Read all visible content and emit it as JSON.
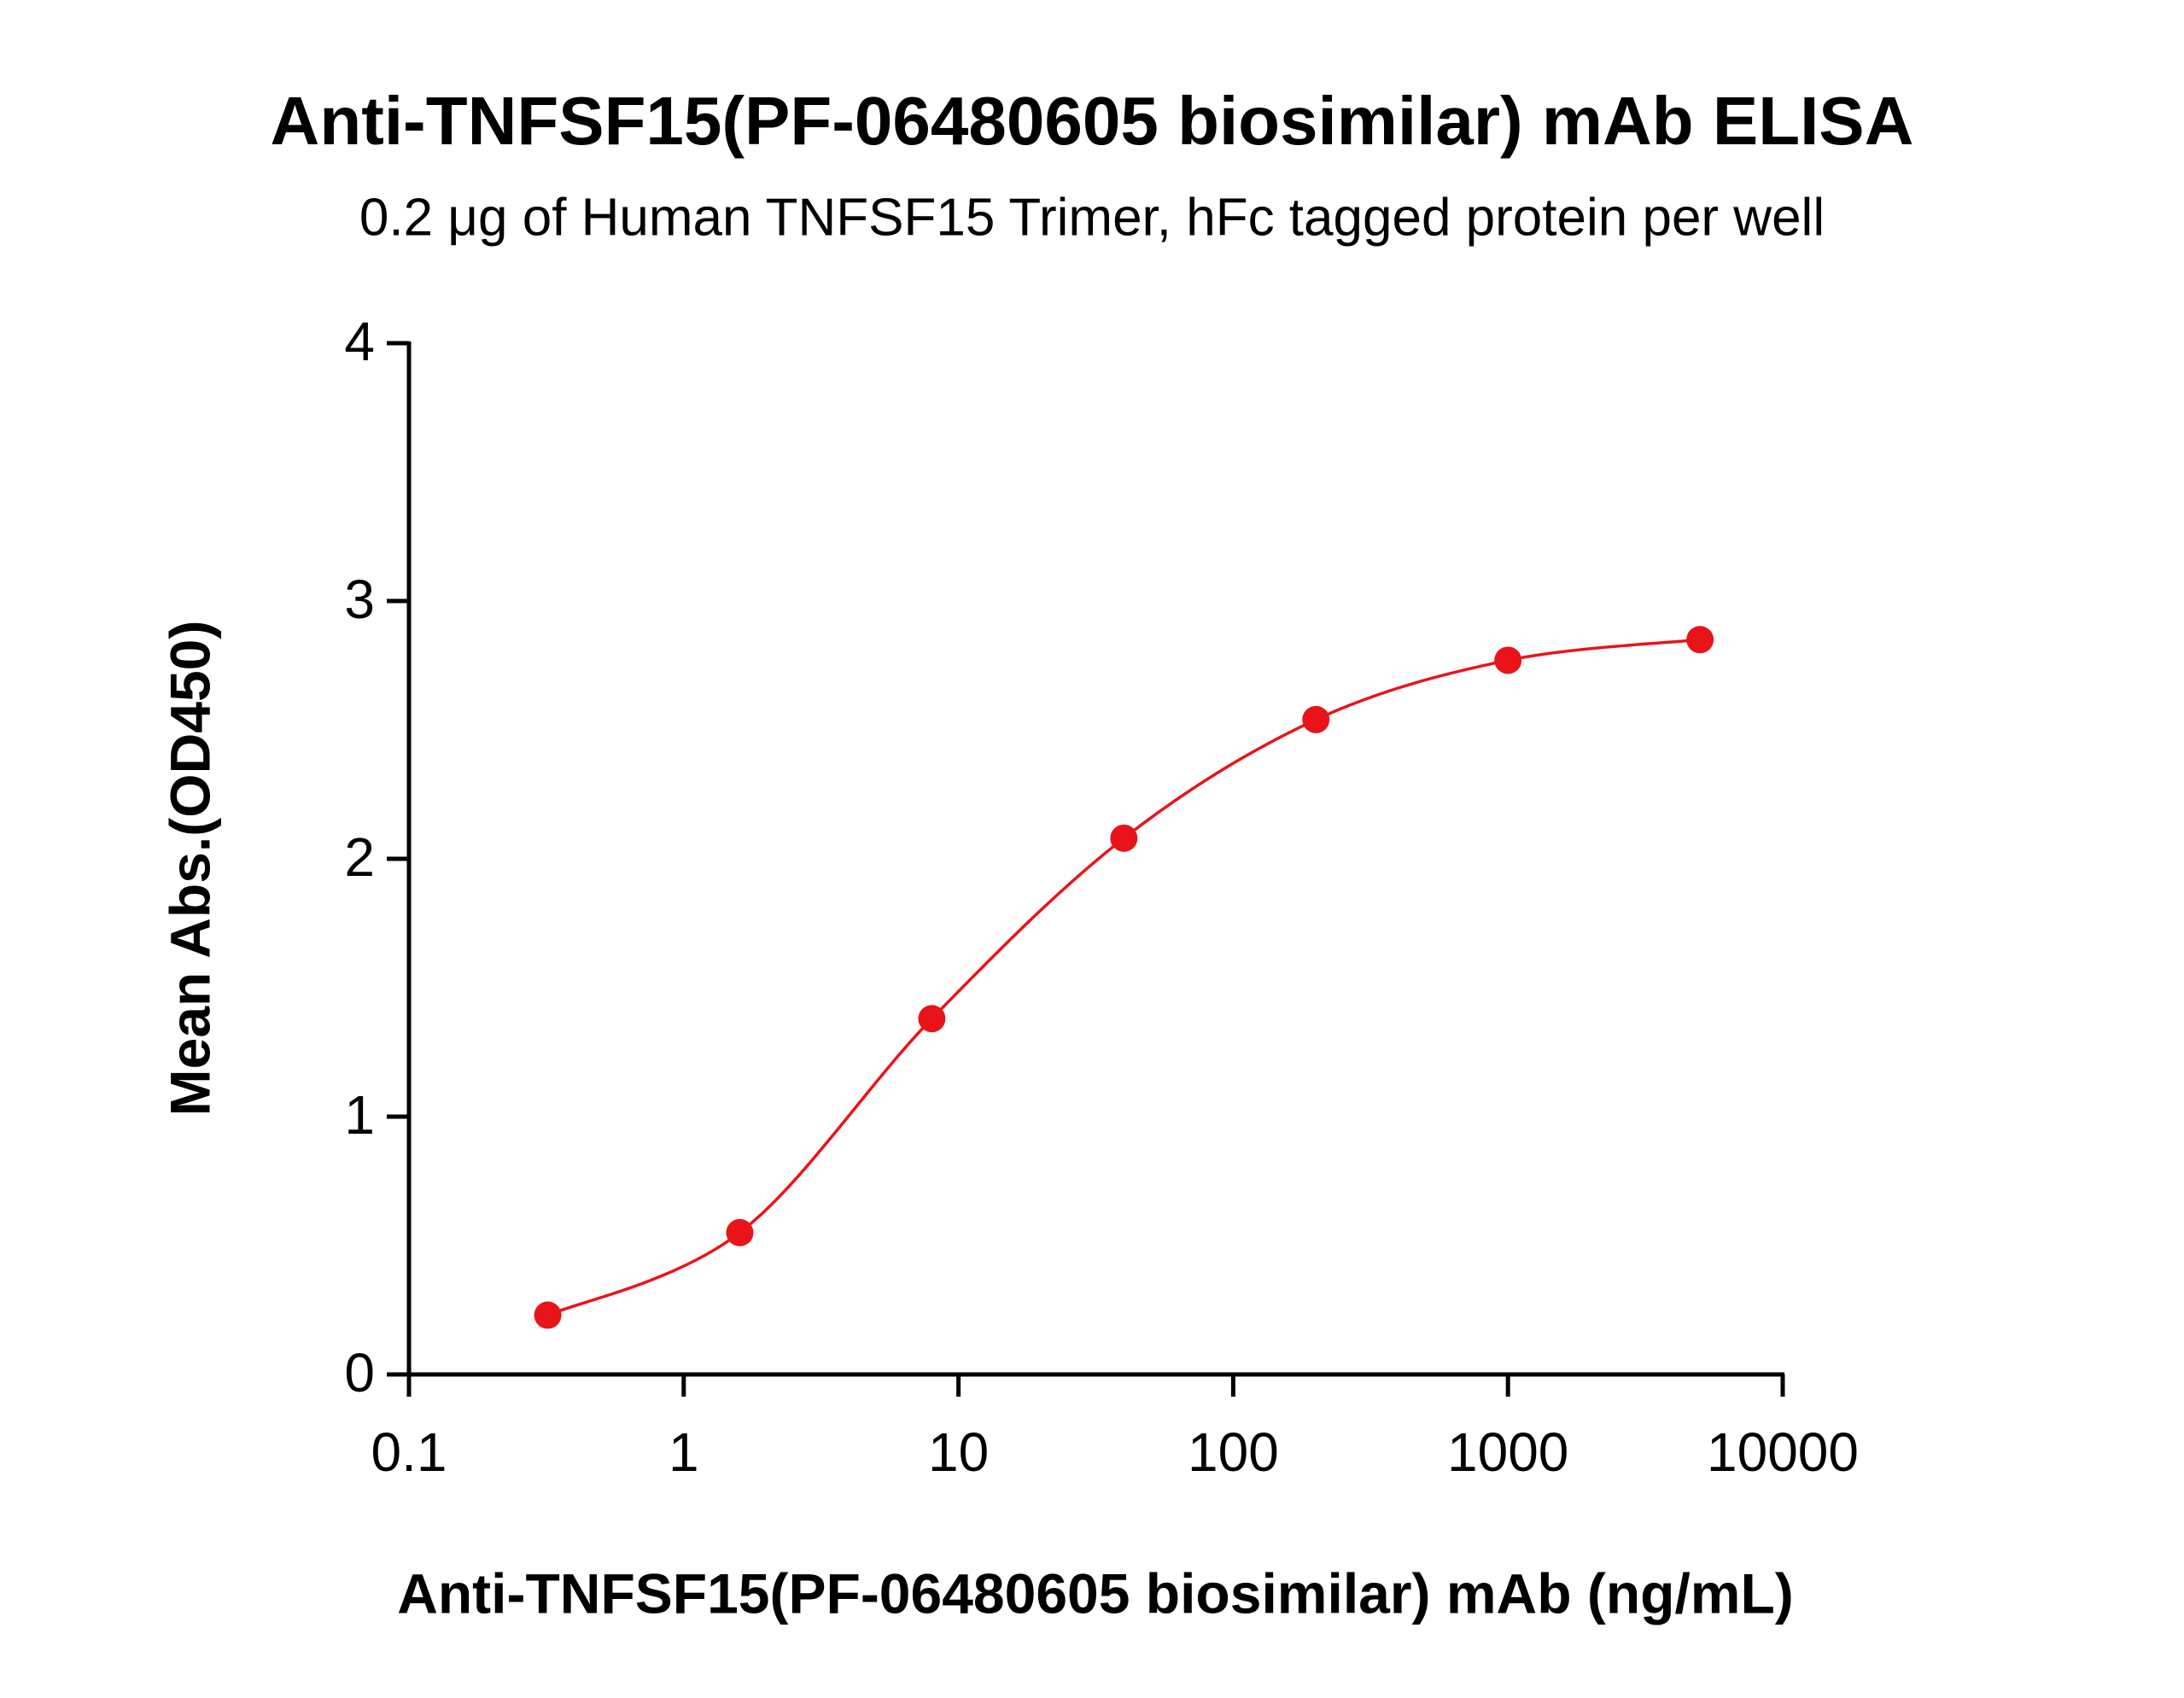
{
  "chart_data": {
    "type": "line",
    "title": "Anti-TNFSF15(PF-06480605 biosimilar) mAb ELISA",
    "subtitle": "0.2 μg of Human TNFSF15 Trimer, hFc tagged protein per well",
    "x_label": "Anti-TNFSF15(PF-06480605 biosimilar) mAb (ng/mL)",
    "y_label": "Mean Abs.(OD450)",
    "x": [
      0.32,
      1.6,
      8,
      40,
      200,
      1000,
      5000
    ],
    "values": [
      0.23,
      0.55,
      1.38,
      2.08,
      2.54,
      2.77,
      2.85
    ],
    "color": "#e8141a",
    "xscale": "log",
    "xlim": [
      0.1,
      10000
    ],
    "xticks": [
      0.1,
      1,
      10,
      100,
      1000,
      10000
    ],
    "ylim": [
      0,
      4
    ],
    "yticks": [
      0,
      1,
      2,
      3,
      4
    ],
    "grid": false
  }
}
